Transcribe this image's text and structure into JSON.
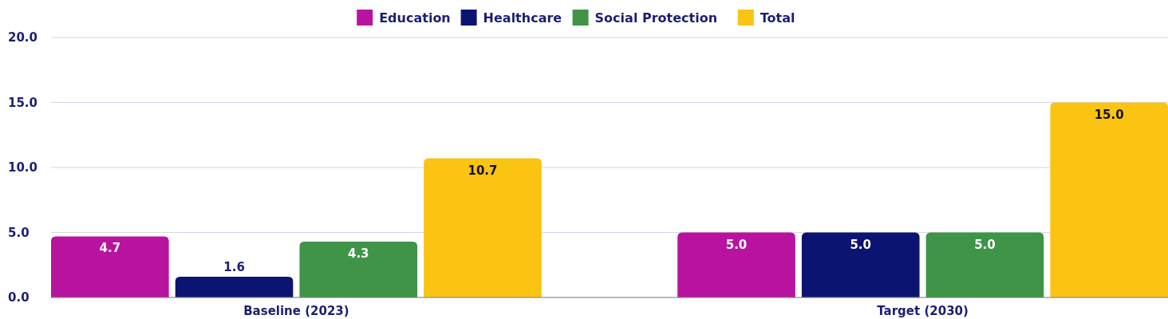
{
  "chart_data": {
    "type": "bar",
    "categories": [
      "Baseline (2023)",
      "Target (2030)"
    ],
    "series": [
      {
        "name": "Education",
        "color": "#b8139f",
        "values": [
          4.7,
          5.0
        ],
        "value_labels": [
          "4.7",
          "5.0"
        ]
      },
      {
        "name": "Healthcare",
        "color": "#0b1470",
        "values": [
          1.6,
          5.0
        ],
        "value_labels": [
          "1.6",
          "5.0"
        ]
      },
      {
        "name": "Social Protection",
        "color": "#3f9447",
        "values": [
          4.3,
          5.0
        ],
        "value_labels": [
          "4.3",
          "5.0"
        ]
      },
      {
        "name": "Total",
        "color": "#fbc312",
        "values": [
          10.7,
          15.0
        ],
        "value_labels": [
          "10.7",
          "15.0"
        ]
      }
    ],
    "ylim": [
      0,
      20
    ],
    "yticks": [
      {
        "value": 0,
        "label": "0.0"
      },
      {
        "value": 5,
        "label": "5.0"
      },
      {
        "value": 10,
        "label": "10.0"
      },
      {
        "value": 15,
        "label": "15.0"
      },
      {
        "value": 20,
        "label": "20.0"
      }
    ],
    "grid": "y",
    "legend": "top"
  }
}
